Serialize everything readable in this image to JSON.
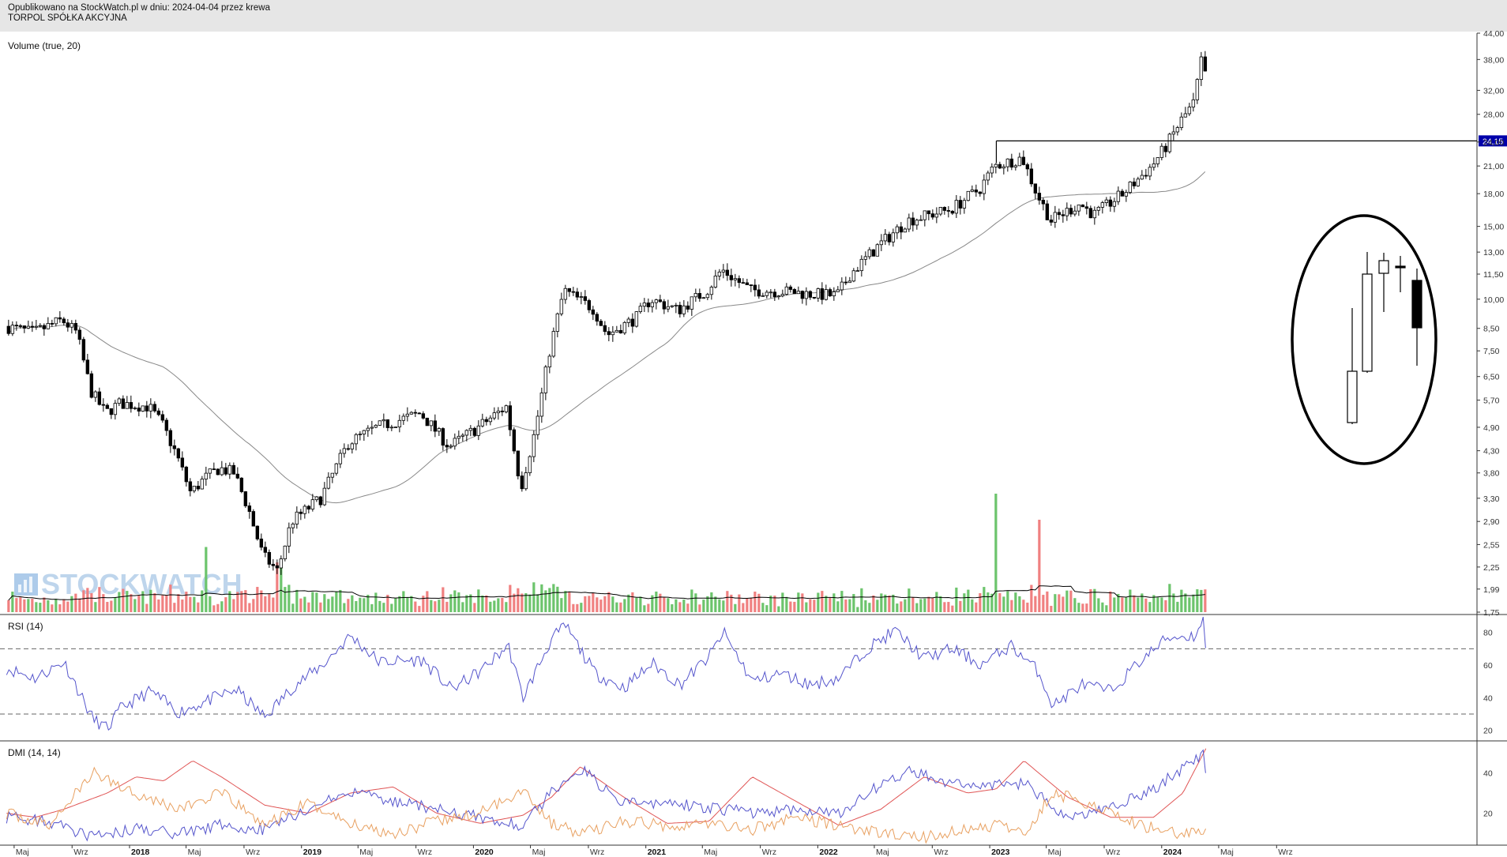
{
  "header": {
    "published": "Opublikowano na StockWatch.pl w dniu: 2024-04-04 przez krewa",
    "company": "TORPOL SPÓŁKA AKCYJNA"
  },
  "watermark": "STOCKWATCH",
  "colors": {
    "up_volume": "#6cc46c",
    "down_volume": "#f08080",
    "rsi_line": "#5555cc",
    "dmi_adx": "#e05555",
    "dmi_plus": "#5555cc",
    "dmi_minus": "#e8a060",
    "price_line_label": "#0000aa"
  },
  "chart_data": [
    {
      "type": "candlestick",
      "title": "",
      "y_scale": "log",
      "ylim": [
        1.75,
        44.0
      ],
      "y_ticks": [
        "44,00",
        "38,00",
        "32,00",
        "28,00",
        "24,00",
        "21,00",
        "18,00",
        "15,00",
        "13,00",
        "11,50",
        "10,00",
        "8,50",
        "7,50",
        "6,50",
        "5,70",
        "4,90",
        "4,30",
        "3,80",
        "3,30",
        "2,90",
        "2,55",
        "2,25",
        "1,99",
        "1,75"
      ],
      "x_ticks": [
        "Maj",
        "Wrz",
        "2018",
        "Maj",
        "Wrz",
        "2019",
        "Maj",
        "Wrz",
        "2020",
        "Maj",
        "Wrz",
        "2021",
        "Maj",
        "Wrz",
        "2022",
        "Maj",
        "Wrz",
        "2023",
        "Maj",
        "Wrz",
        "2024",
        "Maj",
        "Wrz"
      ],
      "horizontal_line": {
        "value": 24.15,
        "label": "24,15"
      },
      "moving_average": "gray line",
      "price_path": [
        [
          "2017-04",
          8.6
        ],
        [
          "2017-06",
          8.3
        ],
        [
          "2017-08",
          8.9
        ],
        [
          "2017-09",
          8.3
        ],
        [
          "2017-10",
          6.0
        ],
        [
          "2017-11",
          5.3
        ],
        [
          "2017-12",
          5.6
        ],
        [
          "2018-02",
          5.5
        ],
        [
          "2018-03",
          5.0
        ],
        [
          "2018-04",
          4.2
        ],
        [
          "2018-05",
          3.4
        ],
        [
          "2018-06",
          3.7
        ],
        [
          "2018-07",
          3.9
        ],
        [
          "2018-08",
          3.8
        ],
        [
          "2018-09",
          3.1
        ],
        [
          "2018-10",
          2.4
        ],
        [
          "2018-11",
          2.2
        ],
        [
          "2018-12",
          2.9
        ],
        [
          "2019-02",
          3.3
        ],
        [
          "2019-04",
          4.5
        ],
        [
          "2019-06",
          4.9
        ],
        [
          "2019-09",
          5.3
        ],
        [
          "2019-11",
          4.4
        ],
        [
          "2020-01",
          4.9
        ],
        [
          "2020-03",
          5.5
        ],
        [
          "2020-04",
          3.5
        ],
        [
          "2020-05",
          4.8
        ],
        [
          "2020-06",
          7.5
        ],
        [
          "2020-07",
          10.5
        ],
        [
          "2020-09",
          9.5
        ],
        [
          "2020-10",
          8.2
        ],
        [
          "2020-12",
          9.0
        ],
        [
          "2021-01",
          10.0
        ],
        [
          "2021-03",
          9.4
        ],
        [
          "2021-05",
          10.5
        ],
        [
          "2021-06",
          11.8
        ],
        [
          "2021-08",
          10.5
        ],
        [
          "2021-09",
          10.5
        ],
        [
          "2021-11",
          10.4
        ],
        [
          "2021-12",
          10.3
        ],
        [
          "2022-02",
          10.2
        ],
        [
          "2022-03",
          11.5
        ],
        [
          "2022-05",
          13.5
        ],
        [
          "2022-07",
          15.5
        ],
        [
          "2022-10",
          16.5
        ],
        [
          "2022-12",
          18.5
        ],
        [
          "2023-01",
          21.0
        ],
        [
          "2023-03",
          22.0
        ],
        [
          "2023-04",
          18.0
        ],
        [
          "2023-05",
          15.5
        ],
        [
          "2023-07",
          17.0
        ],
        [
          "2023-08",
          16.0
        ],
        [
          "2023-10",
          18.0
        ],
        [
          "2023-12",
          21.0
        ],
        [
          "2024-01",
          23.5
        ],
        [
          "2024-02",
          27.0
        ],
        [
          "2024-03",
          30.0
        ],
        [
          "2024-03-28",
          38.0
        ],
        [
          "2024-04-04",
          35.0
        ]
      ]
    },
    {
      "type": "bar",
      "title": "Volume (true, 20)",
      "series": [
        {
          "name": "",
          "values_description": "daily volume bars, green up / red down, black moving average"
        }
      ],
      "spikes": [
        [
          "2018-06",
          0.55
        ],
        [
          "2018-11",
          0.42
        ],
        [
          "2023-01",
          1.0
        ],
        [
          "2023-04",
          0.78
        ]
      ]
    },
    {
      "type": "line",
      "title": "RSI (14)",
      "ylim": [
        15,
        90
      ],
      "y_ticks": [
        "80",
        "60",
        "40",
        "20"
      ],
      "reference_lines": [
        70,
        30
      ],
      "values": [
        [
          "2017-04",
          58
        ],
        [
          "2017-06",
          52
        ],
        [
          "2017-08",
          62
        ],
        [
          "2017-10",
          27
        ],
        [
          "2017-11",
          21
        ],
        [
          "2017-12",
          34
        ],
        [
          "2018-02",
          44
        ],
        [
          "2018-04",
          31
        ],
        [
          "2018-06",
          38
        ],
        [
          "2018-08",
          45
        ],
        [
          "2018-10",
          28
        ],
        [
          "2018-12",
          47
        ],
        [
          "2019-02",
          60
        ],
        [
          "2019-04",
          78
        ],
        [
          "2019-06",
          62
        ],
        [
          "2019-09",
          63
        ],
        [
          "2019-11",
          45
        ],
        [
          "2020-01",
          56
        ],
        [
          "2020-03",
          72
        ],
        [
          "2020-04",
          40
        ],
        [
          "2020-06",
          76
        ],
        [
          "2020-07",
          84
        ],
        [
          "2020-09",
          55
        ],
        [
          "2020-11",
          46
        ],
        [
          "2021-01",
          61
        ],
        [
          "2021-03",
          48
        ],
        [
          "2021-05",
          65
        ],
        [
          "2021-06",
          80
        ],
        [
          "2021-08",
          50
        ],
        [
          "2021-10",
          55
        ],
        [
          "2021-12",
          48
        ],
        [
          "2022-02",
          52
        ],
        [
          "2022-04",
          70
        ],
        [
          "2022-06",
          81
        ],
        [
          "2022-08",
          64
        ],
        [
          "2022-10",
          70
        ],
        [
          "2022-12",
          60
        ],
        [
          "2023-02",
          72
        ],
        [
          "2023-04",
          56
        ],
        [
          "2023-05",
          35
        ],
        [
          "2023-07",
          48
        ],
        [
          "2023-09",
          44
        ],
        [
          "2023-11",
          62
        ],
        [
          "2024-01",
          77
        ],
        [
          "2024-03",
          78
        ],
        [
          "2024-03-28",
          90
        ],
        [
          "2024-04-04",
          71
        ]
      ]
    },
    {
      "type": "line",
      "title": "DMI (14, 14)",
      "ylim": [
        5,
        55
      ],
      "y_ticks": [
        "40",
        "20"
      ],
      "series": [
        {
          "name": "",
          "color_key": "dmi_adx",
          "values": [
            [
              "2017-04",
              20
            ],
            [
              "2017-06",
              18
            ],
            [
              "2017-08",
              22
            ],
            [
              "2017-11",
              30
            ],
            [
              "2018-01",
              38
            ],
            [
              "2018-03",
              36
            ],
            [
              "2018-05",
              46
            ],
            [
              "2018-07",
              38
            ],
            [
              "2018-10",
              24
            ],
            [
              "2019-01",
              20
            ],
            [
              "2019-04",
              30
            ],
            [
              "2019-07",
              33
            ],
            [
              "2019-10",
              20
            ],
            [
              "2020-01",
              15
            ],
            [
              "2020-04",
              19
            ],
            [
              "2020-06",
              28
            ],
            [
              "2020-08",
              43
            ],
            [
              "2020-11",
              28
            ],
            [
              "2021-02",
              15
            ],
            [
              "2021-05",
              16
            ],
            [
              "2021-08",
              38
            ],
            [
              "2021-11",
              26
            ],
            [
              "2022-02",
              14
            ],
            [
              "2022-05",
              22
            ],
            [
              "2022-08",
              38
            ],
            [
              "2022-11",
              30
            ],
            [
              "2023-01",
              32
            ],
            [
              "2023-03",
              46
            ],
            [
              "2023-06",
              28
            ],
            [
              "2023-09",
              18
            ],
            [
              "2023-12",
              18
            ],
            [
              "2024-02",
              30
            ],
            [
              "2024-04-04",
              52
            ]
          ]
        },
        {
          "name": "",
          "color_key": "dmi_plus",
          "values": [
            [
              "2017-04",
              18
            ],
            [
              "2017-07",
              16
            ],
            [
              "2017-10",
              8
            ],
            [
              "2018-01",
              12
            ],
            [
              "2018-04",
              10
            ],
            [
              "2018-07",
              14
            ],
            [
              "2018-10",
              12
            ],
            [
              "2019-01",
              22
            ],
            [
              "2019-04",
              30
            ],
            [
              "2019-07",
              26
            ],
            [
              "2019-10",
              22
            ],
            [
              "2020-01",
              18
            ],
            [
              "2020-04",
              14
            ],
            [
              "2020-06",
              30
            ],
            [
              "2020-08",
              42
            ],
            [
              "2020-11",
              25
            ],
            [
              "2021-02",
              25
            ],
            [
              "2021-05",
              23
            ],
            [
              "2021-08",
              20
            ],
            [
              "2021-11",
              22
            ],
            [
              "2022-02",
              20
            ],
            [
              "2022-05",
              34
            ],
            [
              "2022-07",
              41
            ],
            [
              "2022-10",
              35
            ],
            [
              "2023-01",
              34
            ],
            [
              "2023-03",
              35
            ],
            [
              "2023-06",
              18
            ],
            [
              "2023-09",
              22
            ],
            [
              "2023-12",
              32
            ],
            [
              "2024-02",
              42
            ],
            [
              "2024-03-28",
              50
            ],
            [
              "2024-04-04",
              40
            ]
          ]
        },
        {
          "name": "",
          "color_key": "dmi_minus",
          "values": [
            [
              "2017-04",
              20
            ],
            [
              "2017-07",
              14
            ],
            [
              "2017-10",
              40
            ],
            [
              "2018-01",
              30
            ],
            [
              "2018-04",
              22
            ],
            [
              "2018-07",
              30
            ],
            [
              "2018-10",
              14
            ],
            [
              "2019-01",
              25
            ],
            [
              "2019-04",
              15
            ],
            [
              "2019-07",
              10
            ],
            [
              "2019-10",
              16
            ],
            [
              "2020-01",
              20
            ],
            [
              "2020-04",
              32
            ],
            [
              "2020-06",
              15
            ],
            [
              "2020-08",
              10
            ],
            [
              "2020-11",
              16
            ],
            [
              "2021-02",
              14
            ],
            [
              "2021-05",
              15
            ],
            [
              "2021-08",
              12
            ],
            [
              "2021-11",
              18
            ],
            [
              "2022-02",
              14
            ],
            [
              "2022-05",
              10
            ],
            [
              "2022-08",
              8
            ],
            [
              "2022-11",
              12
            ],
            [
              "2023-01",
              14
            ],
            [
              "2023-03",
              10
            ],
            [
              "2023-05",
              30
            ],
            [
              "2023-08",
              24
            ],
            [
              "2023-11",
              14
            ],
            [
              "2024-02",
              10
            ],
            [
              "2024-04-04",
              12
            ]
          ]
        }
      ]
    }
  ]
}
